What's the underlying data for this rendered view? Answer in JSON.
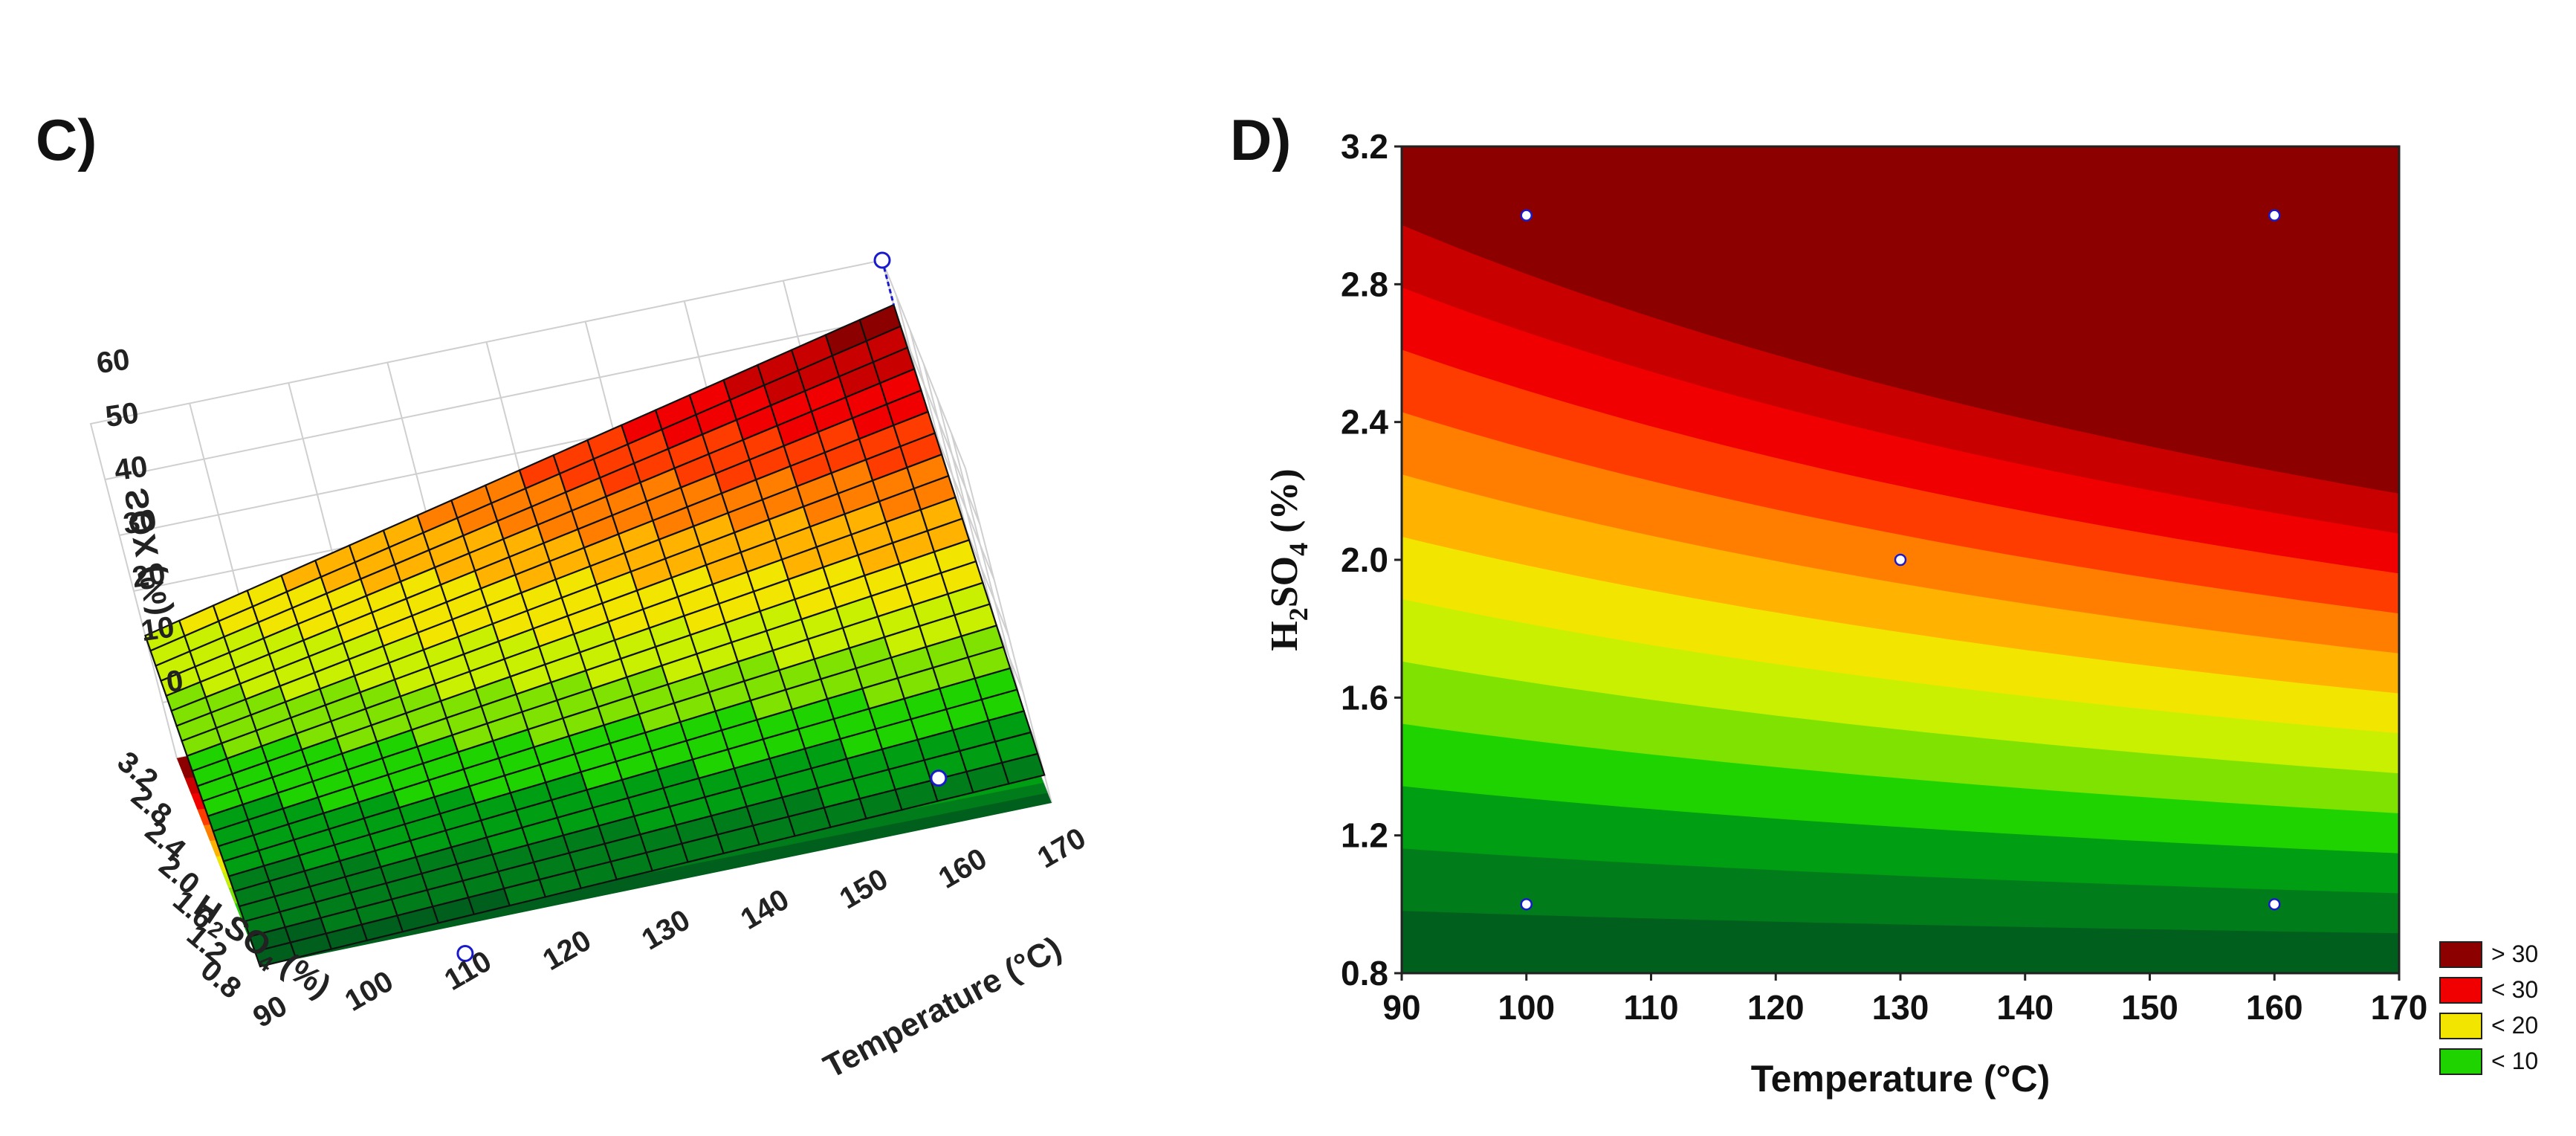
{
  "panel_c": {
    "label": "C)"
  },
  "panel_d": {
    "label": "D)"
  },
  "colors": {
    "bands": [
      "#005f1c",
      "#007d1a",
      "#009e12",
      "#1fd300",
      "#7fe200",
      "#c8f000",
      "#f2e600",
      "#ffb300",
      "#ff7e00",
      "#ff3c00",
      "#f00000",
      "#c80000",
      "#8c0000"
    ],
    "point_fill": "#ffffff",
    "point_stroke": "#1a1acd",
    "grid_line": "#cfcfcf",
    "surface_grid": "#111111"
  },
  "chart_data": [
    {
      "id": "surface-3d",
      "type": "surface",
      "zlabel": "SOX (%)",
      "xlabel": "Temperature (°C)",
      "ylabel": {
        "base": "H",
        "sub1": "2",
        "mid": "SO",
        "sub2": "4",
        "tail": " (%)"
      },
      "x_ticks": [
        "90",
        "100",
        "110",
        "120",
        "130",
        "140",
        "150",
        "160",
        "170"
      ],
      "y_ticks": [
        "0.8",
        "1.2",
        "1.6",
        "2.0",
        "2.4",
        "2.8",
        "3.2"
      ],
      "z_ticks": [
        "0",
        "10",
        "20",
        "30",
        "40",
        "50",
        "60"
      ],
      "xlim": [
        90,
        170
      ],
      "ylim": [
        0.8,
        3.2
      ],
      "zlim": [
        0,
        60
      ],
      "surface_corners": {
        "x90_y0.8": 0,
        "x170_y0.8": 5,
        "x90_y3.2": 22,
        "x170_y3.2": 52
      },
      "points": [
        {
          "x": 170,
          "y": 3.2,
          "z": 60
        },
        {
          "x": 160,
          "y": 1.0,
          "z": 5
        },
        {
          "x": 110,
          "y": 0.8,
          "z": -5
        }
      ]
    },
    {
      "id": "contour-2d",
      "type": "contour",
      "xlabel": "Temperature (°C)",
      "ylabel": {
        "base": "H",
        "sub1": "2",
        "mid": "SO",
        "sub2": "4",
        "tail": " (%)"
      },
      "x_ticks": [
        "90",
        "100",
        "110",
        "120",
        "130",
        "140",
        "150",
        "160",
        "170"
      ],
      "y_ticks": [
        "0.8",
        "1.2",
        "1.6",
        "2.0",
        "2.4",
        "2.8",
        "3.2"
      ],
      "xlim": [
        90,
        170
      ],
      "ylim": [
        0.8,
        3.2
      ],
      "points": [
        {
          "x": 100,
          "y": 3.0
        },
        {
          "x": 160,
          "y": 3.0
        },
        {
          "x": 130,
          "y": 2.0
        },
        {
          "x": 100,
          "y": 1.0
        },
        {
          "x": 160,
          "y": 1.0
        }
      ],
      "legend": [
        {
          "label": "> 30",
          "color": "#8c0000"
        },
        {
          "label": "< 30",
          "color": "#f00000"
        },
        {
          "label": "< 20",
          "color": "#f2e600"
        },
        {
          "label": "< 10",
          "color": "#1fd300"
        }
      ]
    }
  ]
}
